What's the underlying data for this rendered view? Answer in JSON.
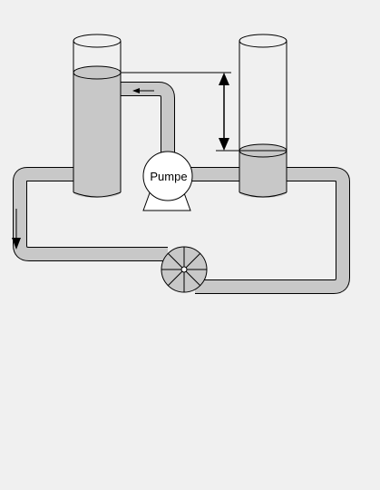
{
  "diagram": {
    "pump_label": "Pumpe",
    "colors": {
      "background": "#f0f0f0",
      "pipe_fill": "#c8c8c8",
      "water": "#c8c8c8",
      "pump_fill": "#ffffff",
      "outline": "#000000"
    },
    "components": [
      "left-tank",
      "right-tank",
      "pump",
      "turbine-wheel",
      "pipe-loop",
      "return-pipe",
      "level-difference-arrow",
      "flow-direction-arrow"
    ]
  }
}
